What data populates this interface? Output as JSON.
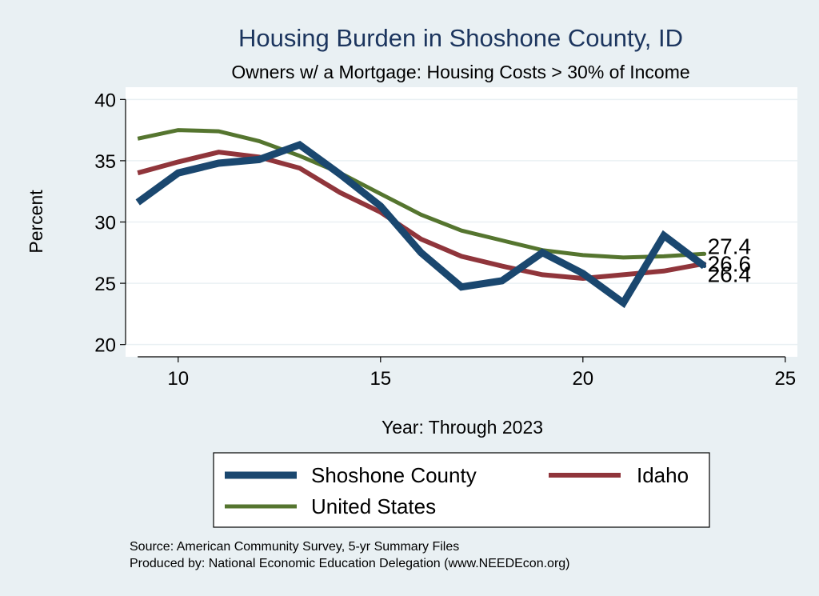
{
  "chart_data": {
    "type": "line",
    "title": "Housing Burden in Shoshone County, ID",
    "subtitle": "Owners w/ a Mortgage: Housing Costs > 30% of Income",
    "xlabel": "Year: Through 2023",
    "ylabel": "Percent",
    "xlim": [
      8.7,
      25.3
    ],
    "ylim": [
      19,
      41
    ],
    "xticks": [
      10,
      15,
      20,
      25
    ],
    "yticks": [
      20,
      25,
      30,
      35,
      40
    ],
    "grid": true,
    "legend_position": "bottom",
    "series": [
      {
        "name": "Shoshone County",
        "color": "#1a476f",
        "width": 9,
        "x": [
          9,
          10,
          11,
          12,
          13,
          14,
          15,
          16,
          17,
          18,
          19,
          20,
          21,
          22,
          23
        ],
        "values": [
          31.6,
          34.0,
          34.8,
          35.1,
          36.3,
          33.9,
          31.3,
          27.5,
          24.7,
          25.2,
          27.5,
          25.8,
          23.4,
          28.9,
          26.4
        ],
        "end_label": "26.4"
      },
      {
        "name": "Idaho",
        "color": "#90353b",
        "width": 6,
        "x": [
          9,
          10,
          11,
          12,
          13,
          14,
          15,
          16,
          17,
          18,
          19,
          20,
          21,
          22,
          23
        ],
        "values": [
          34.0,
          34.9,
          35.7,
          35.3,
          34.4,
          32.4,
          30.8,
          28.6,
          27.2,
          26.4,
          25.7,
          25.4,
          25.7,
          26.0,
          26.6
        ],
        "end_label": "26.6"
      },
      {
        "name": "United States",
        "color": "#55752f",
        "width": 5,
        "x": [
          9,
          10,
          11,
          12,
          13,
          14,
          15,
          16,
          17,
          18,
          19,
          20,
          21,
          22,
          23
        ],
        "values": [
          36.8,
          37.5,
          37.4,
          36.6,
          35.4,
          34.0,
          32.3,
          30.6,
          29.3,
          28.5,
          27.7,
          27.3,
          27.1,
          27.2,
          27.4
        ],
        "end_label": "27.4"
      }
    ],
    "legend": [
      {
        "label": "Shoshone County",
        "color": "#1a476f",
        "width": 9
      },
      {
        "label": "Idaho",
        "color": "#90353b",
        "width": 6
      },
      {
        "label": "United States",
        "color": "#55752f",
        "width": 5
      }
    ],
    "notes": [
      "Source: American Community Survey, 5-yr Summary Files",
      "Produced by: National Economic Education Delegation (www.NEEDEcon.org)"
    ]
  }
}
